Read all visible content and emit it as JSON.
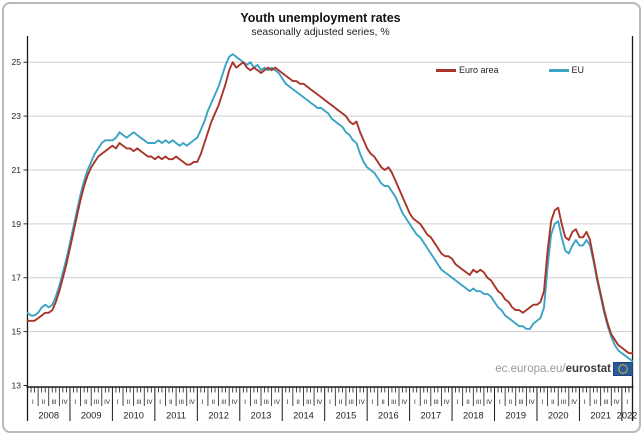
{
  "header": {
    "title": "Youth unemployment rates",
    "subtitle": "seasonally adjusted series, %"
  },
  "legend": {
    "items": [
      {
        "label": "Euro area",
        "color": "#a8352a"
      },
      {
        "label": "EU",
        "color": "#3ba3c4"
      }
    ]
  },
  "footer": {
    "url_prefix": "ec.europa.eu/",
    "url_bold": "eurostat",
    "logo": "eu-flag-icon",
    "logo_colors": {
      "field": "#2a5a9e",
      "stars": "#f7d117"
    }
  },
  "colors": {
    "gridline": "#cfcfcf",
    "axis": "#1a1a1a",
    "tick_text": "#222222"
  },
  "chart_data": {
    "type": "line",
    "title": "Youth unemployment rates",
    "subtitle": "seasonally adjusted series, %",
    "ylabel": "%",
    "ylim": [
      13,
      25.8
    ],
    "yticks": [
      13,
      15,
      17,
      19,
      21,
      23,
      25
    ],
    "grid": "horizontal",
    "legend_position": "top-right-inside",
    "frequency": "monthly",
    "x_start": "2008-01",
    "x_end": "2022-04",
    "years": [
      2008,
      2009,
      2010,
      2011,
      2012,
      2013,
      2014,
      2015,
      2016,
      2017,
      2018,
      2019,
      2020,
      2021,
      2022
    ],
    "quarter_labels": [
      "I",
      "II",
      "III",
      "IV"
    ],
    "series": [
      {
        "name": "EU",
        "color": "#3ba3c4",
        "values": [
          15.7,
          15.6,
          15.6,
          15.7,
          15.9,
          16.0,
          15.9,
          16.0,
          16.3,
          16.7,
          17.2,
          17.7,
          18.3,
          18.9,
          19.5,
          20.1,
          20.6,
          21.0,
          21.3,
          21.6,
          21.8,
          22.0,
          22.1,
          22.1,
          22.1,
          22.2,
          22.4,
          22.3,
          22.2,
          22.3,
          22.4,
          22.3,
          22.2,
          22.1,
          22.0,
          22.0,
          22.0,
          22.1,
          22.0,
          22.1,
          22.0,
          22.1,
          22.0,
          21.9,
          22.0,
          21.9,
          22.0,
          22.1,
          22.2,
          22.5,
          22.8,
          23.2,
          23.5,
          23.8,
          24.1,
          24.5,
          24.9,
          25.2,
          25.3,
          25.2,
          25.1,
          25.0,
          24.9,
          25.0,
          24.8,
          24.9,
          24.7,
          24.8,
          24.7,
          24.8,
          24.7,
          24.6,
          24.4,
          24.2,
          24.1,
          24.0,
          23.9,
          23.8,
          23.7,
          23.6,
          23.5,
          23.4,
          23.3,
          23.3,
          23.2,
          23.1,
          22.9,
          22.8,
          22.7,
          22.6,
          22.4,
          22.3,
          22.1,
          22.0,
          21.6,
          21.3,
          21.1,
          21.0,
          20.9,
          20.7,
          20.5,
          20.4,
          20.4,
          20.2,
          20.0,
          19.7,
          19.4,
          19.2,
          19.0,
          18.8,
          18.6,
          18.5,
          18.3,
          18.1,
          17.9,
          17.7,
          17.5,
          17.3,
          17.2,
          17.1,
          17.0,
          16.9,
          16.8,
          16.7,
          16.6,
          16.5,
          16.6,
          16.5,
          16.5,
          16.4,
          16.4,
          16.3,
          16.1,
          15.9,
          15.8,
          15.6,
          15.5,
          15.4,
          15.3,
          15.2,
          15.2,
          15.1,
          15.1,
          15.3,
          15.4,
          15.5,
          15.9,
          17.4,
          18.6,
          19.0,
          19.1,
          18.5,
          18.0,
          17.9,
          18.2,
          18.4,
          18.2,
          18.2,
          18.4,
          18.2,
          17.6,
          16.9,
          16.3,
          15.7,
          15.2,
          14.8,
          14.5,
          14.3,
          14.2,
          14.1,
          14.0,
          13.9
        ]
      },
      {
        "name": "Euro area",
        "color": "#a8352a",
        "values": [
          15.4,
          15.4,
          15.4,
          15.5,
          15.6,
          15.7,
          15.7,
          15.8,
          16.1,
          16.5,
          17.0,
          17.5,
          18.1,
          18.7,
          19.3,
          19.9,
          20.4,
          20.8,
          21.1,
          21.3,
          21.5,
          21.6,
          21.7,
          21.8,
          21.9,
          21.8,
          22.0,
          21.9,
          21.8,
          21.8,
          21.7,
          21.8,
          21.7,
          21.6,
          21.5,
          21.5,
          21.4,
          21.5,
          21.4,
          21.5,
          21.4,
          21.4,
          21.5,
          21.4,
          21.3,
          21.2,
          21.2,
          21.3,
          21.3,
          21.6,
          22.0,
          22.4,
          22.8,
          23.1,
          23.4,
          23.8,
          24.2,
          24.7,
          25.0,
          24.8,
          24.9,
          25.0,
          24.8,
          24.7,
          24.8,
          24.7,
          24.6,
          24.7,
          24.8,
          24.7,
          24.8,
          24.7,
          24.6,
          24.5,
          24.4,
          24.3,
          24.3,
          24.2,
          24.2,
          24.1,
          24.0,
          23.9,
          23.8,
          23.7,
          23.6,
          23.5,
          23.4,
          23.3,
          23.2,
          23.1,
          23.0,
          22.8,
          22.7,
          22.8,
          22.4,
          22.1,
          21.8,
          21.6,
          21.5,
          21.3,
          21.1,
          21.0,
          21.1,
          20.9,
          20.6,
          20.3,
          20.0,
          19.7,
          19.4,
          19.2,
          19.1,
          19.0,
          18.8,
          18.6,
          18.5,
          18.3,
          18.1,
          17.9,
          17.8,
          17.8,
          17.7,
          17.5,
          17.4,
          17.3,
          17.2,
          17.1,
          17.3,
          17.2,
          17.3,
          17.2,
          17.0,
          16.9,
          16.7,
          16.5,
          16.4,
          16.2,
          16.1,
          15.9,
          15.8,
          15.8,
          15.7,
          15.8,
          15.9,
          16.0,
          16.0,
          16.1,
          16.5,
          18.0,
          19.1,
          19.5,
          19.6,
          19.0,
          18.5,
          18.4,
          18.7,
          18.8,
          18.5,
          18.5,
          18.7,
          18.4,
          17.7,
          17.0,
          16.4,
          15.8,
          15.3,
          14.9,
          14.7,
          14.5,
          14.4,
          14.3,
          14.2,
          14.2
        ]
      }
    ]
  }
}
